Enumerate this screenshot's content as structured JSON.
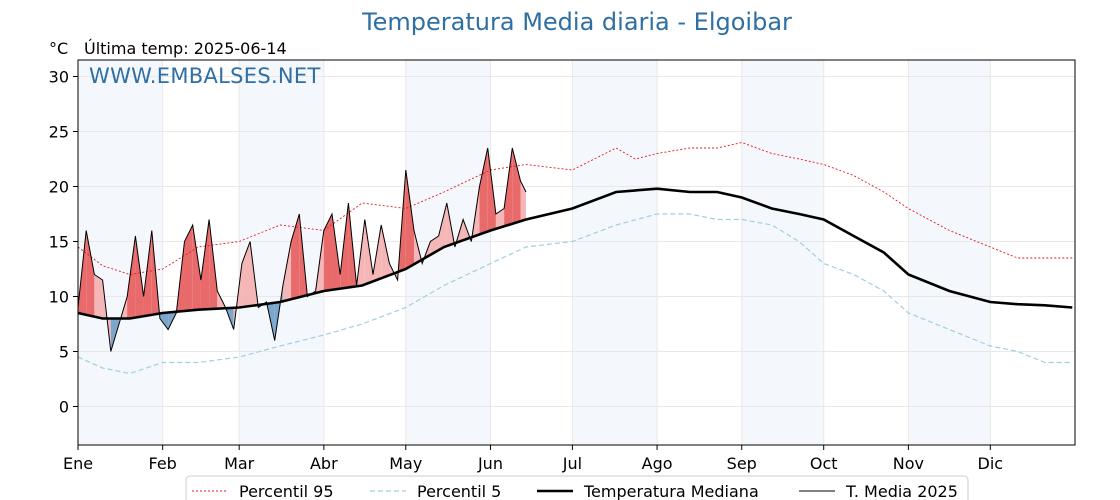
{
  "title": "Temperatura Media diaria - Elgoibar",
  "unit": "°C",
  "last_temp_text": "Última temp: 2025-06-14",
  "watermark": "WWW.EMBALSES.NET",
  "colors": {
    "title": "#2f6fa3",
    "p95": "#e31a1c",
    "p5": "#9fcfe0",
    "median": "#000000",
    "current": "#000000",
    "fill_above": "#f4b6b6",
    "fill_above_strong": "#e86a6a",
    "fill_below": "#7ba7cc",
    "month_band": "#f4f8fc",
    "grid": "#e8e8e8"
  },
  "chart_data": {
    "type": "line",
    "title": "Temperatura Media diaria - Elgoibar",
    "ylabel": "°C",
    "ylim": [
      -3.5,
      31.5
    ],
    "yticks": [
      0,
      5,
      10,
      15,
      20,
      25,
      30
    ],
    "xlim": [
      1,
      366
    ],
    "month_labels": [
      "Ene",
      "Feb",
      "Mar",
      "Abr",
      "May",
      "Jun",
      "Jul",
      "Ago",
      "Sep",
      "Oct",
      "Nov",
      "Dic"
    ],
    "month_start_days": [
      1,
      32,
      60,
      91,
      121,
      152,
      182,
      213,
      244,
      274,
      305,
      335
    ],
    "grid": true,
    "legend_position": "bottom-center",
    "series": [
      {
        "name": "Percentil 95",
        "style": "dotted",
        "x": [
          1,
          10,
          20,
          32,
          45,
          60,
          75,
          91,
          105,
          121,
          135,
          152,
          165,
          182,
          198,
          205,
          213,
          225,
          235,
          244,
          255,
          265,
          274,
          285,
          296,
          305,
          320,
          335,
          345,
          355,
          365
        ],
        "y": [
          14.5,
          12.8,
          12.0,
          12.5,
          14.5,
          15.0,
          16.5,
          16.0,
          18.5,
          18.0,
          19.5,
          21.5,
          22.0,
          21.5,
          23.5,
          22.5,
          23.0,
          23.5,
          23.5,
          24.0,
          23.0,
          22.5,
          22.0,
          21.0,
          19.5,
          18.0,
          16.0,
          14.5,
          13.5,
          13.5,
          13.5
        ]
      },
      {
        "name": "Percentil 5",
        "style": "dashed",
        "x": [
          1,
          10,
          20,
          32,
          45,
          60,
          75,
          91,
          105,
          121,
          135,
          152,
          165,
          182,
          198,
          213,
          225,
          235,
          244,
          255,
          265,
          274,
          285,
          296,
          305,
          320,
          335,
          345,
          355,
          365
        ],
        "y": [
          4.5,
          3.5,
          3.0,
          4.0,
          4.0,
          4.5,
          5.5,
          6.5,
          7.5,
          9.0,
          11.0,
          13.0,
          14.5,
          15.0,
          16.5,
          17.5,
          17.5,
          17.0,
          17.0,
          16.5,
          15.0,
          13.0,
          12.0,
          10.5,
          8.5,
          7.0,
          5.5,
          5.0,
          4.0,
          4.0
        ]
      },
      {
        "name": "Temperatura Mediana",
        "style": "solid-thick",
        "x": [
          1,
          10,
          20,
          32,
          45,
          60,
          75,
          91,
          105,
          121,
          135,
          152,
          165,
          182,
          198,
          213,
          225,
          235,
          244,
          255,
          265,
          274,
          285,
          296,
          305,
          320,
          335,
          345,
          355,
          365
        ],
        "y": [
          8.5,
          8.0,
          8.0,
          8.5,
          8.8,
          9.0,
          9.5,
          10.5,
          11.0,
          12.5,
          14.5,
          16.0,
          17.0,
          18.0,
          19.5,
          19.8,
          19.5,
          19.5,
          19.0,
          18.0,
          17.5,
          17.0,
          15.5,
          14.0,
          12.0,
          10.5,
          9.5,
          9.3,
          9.2,
          9.0
        ]
      },
      {
        "name": "T. Media 2025",
        "style": "solid-thin",
        "x": [
          1,
          4,
          7,
          10,
          13,
          16,
          19,
          22,
          25,
          28,
          31,
          34,
          37,
          40,
          43,
          46,
          49,
          52,
          55,
          58,
          61,
          64,
          67,
          70,
          73,
          76,
          79,
          82,
          85,
          88,
          91,
          94,
          97,
          100,
          103,
          106,
          109,
          112,
          115,
          118,
          121,
          124,
          127,
          130,
          133,
          136,
          139,
          142,
          145,
          148,
          151,
          154,
          157,
          160,
          163,
          165
        ],
        "y": [
          9.0,
          16.0,
          12.0,
          11.5,
          5.0,
          7.5,
          10.0,
          15.5,
          10.0,
          16.0,
          8.0,
          7.0,
          8.5,
          15.0,
          16.5,
          11.5,
          17.0,
          10.5,
          9.0,
          7.0,
          13.0,
          15.0,
          9.0,
          9.5,
          6.0,
          11.0,
          15.0,
          17.5,
          10.0,
          10.5,
          16.0,
          17.5,
          12.0,
          18.5,
          11.0,
          17.0,
          12.0,
          16.5,
          13.0,
          11.5,
          21.5,
          16.0,
          13.0,
          15.0,
          15.5,
          18.5,
          14.5,
          17.0,
          15.0,
          20.0,
          23.5,
          17.5,
          18.0,
          23.5,
          20.5,
          19.5
        ]
      }
    ]
  }
}
